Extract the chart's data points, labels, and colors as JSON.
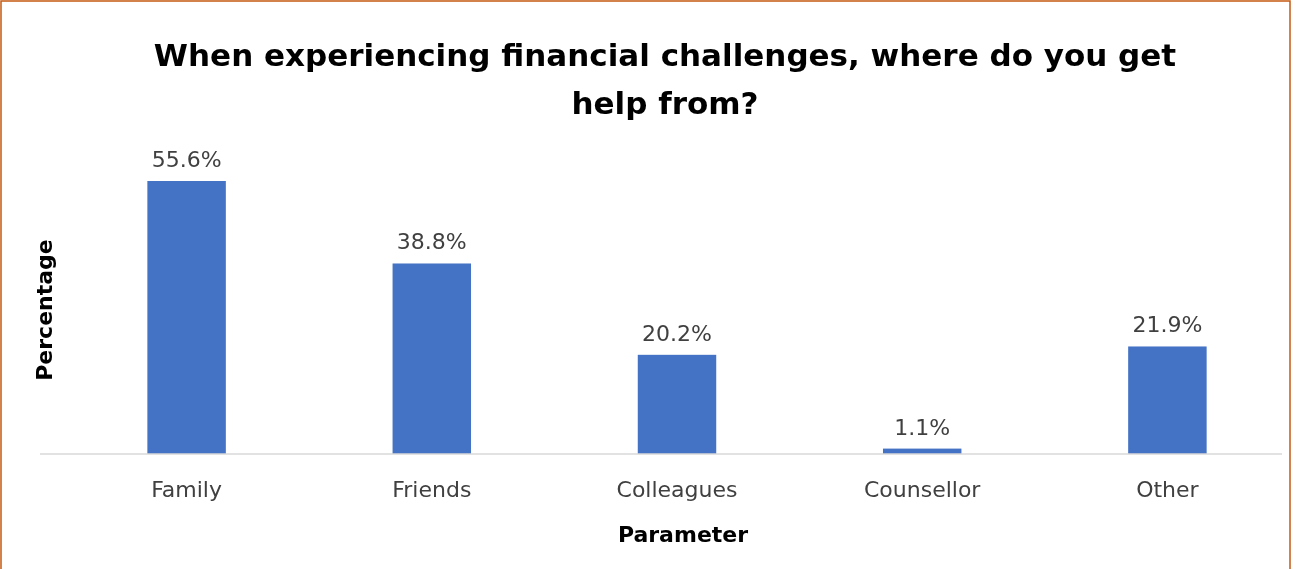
{
  "chart_data": {
    "type": "bar",
    "title": "When experiencing financial challenges, where do you get help from?",
    "xlabel": "Parameter",
    "ylabel": "Percentage",
    "categories": [
      "Family",
      "Friends",
      "Colleagues",
      "Counsellor",
      "Other"
    ],
    "values": [
      55.6,
      38.8,
      20.2,
      1.1,
      21.9
    ],
    "value_labels": [
      "55.6%",
      "38.8%",
      "20.2%",
      "1.1%",
      "21.9%"
    ],
    "color": "#4472c4"
  }
}
